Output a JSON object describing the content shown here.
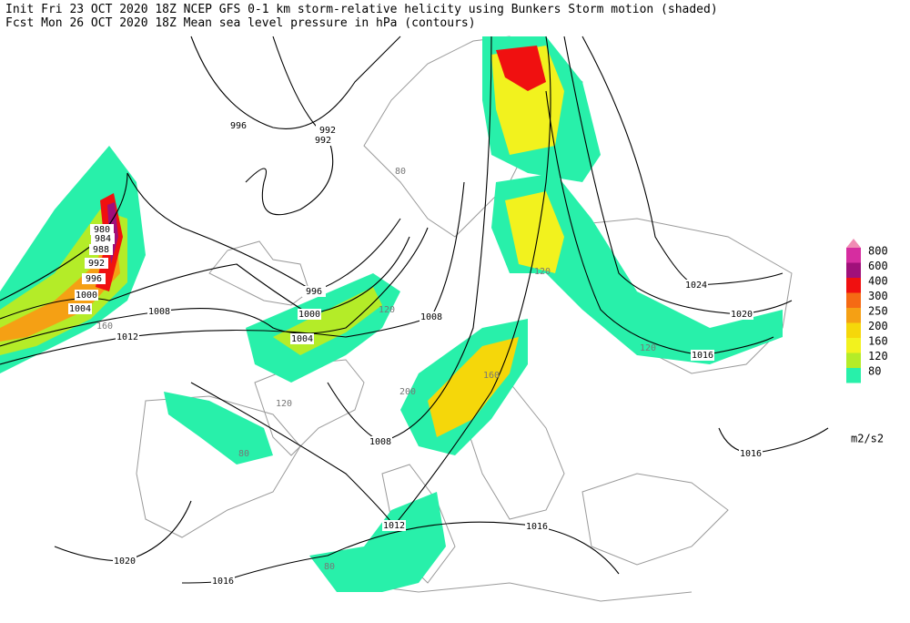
{
  "header": {
    "line1": "Init  Fri 23 OCT 2020 18Z   NCEP GFS 0-1 km storm-relative helicity using Bunkers Storm motion (shaded)",
    "line2": "Fcst Mon 26 OCT 2020 18Z  Mean sea level pressure in hPa (contours)"
  },
  "legend": {
    "levels": [
      {
        "label": 800,
        "color": "#d62da0"
      },
      {
        "label": 600,
        "color": "#a0107a"
      },
      {
        "label": 400,
        "color": "#f01010"
      },
      {
        "label": 300,
        "color": "#f56a14"
      },
      {
        "label": 250,
        "color": "#f5a014"
      },
      {
        "label": 200,
        "color": "#f5d70a"
      },
      {
        "label": 160,
        "color": "#f2f21e"
      },
      {
        "label": 120,
        "color": "#b4ec28"
      },
      {
        "label": 80,
        "color": "#28f0aa"
      }
    ],
    "top_color": "#f08cb4",
    "unit": "m2/s2"
  },
  "contour_labels": [
    "996",
    "992",
    "992",
    "996",
    "1000",
    "1004",
    "1008",
    "1008",
    "1012",
    "1004",
    "1000",
    "996",
    "992",
    "988",
    "984",
    "980",
    "1008",
    "1012",
    "1016",
    "1016",
    "1020",
    "1024",
    "1020",
    "1016",
    "1016"
  ],
  "shade_labels": [
    "80",
    "120",
    "160",
    "120",
    "80",
    "200",
    "160",
    "120",
    "80",
    "120"
  ]
}
